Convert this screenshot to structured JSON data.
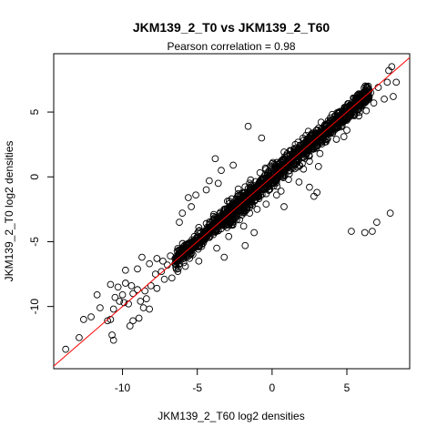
{
  "chart_data": {
    "type": "scatter",
    "title": "JKM139_2_T0 vs JKM139_2_T60",
    "subtitle": "Pearson correlation =  0.98",
    "xlabel": "JKM139_2_T60 log2 densities",
    "ylabel": "JKM139_2_T0 log2 densities",
    "xlim": [
      -14.6,
      9.2
    ],
    "ylim": [
      -14.8,
      9.5
    ],
    "xticks": [
      -10,
      -5,
      0,
      5
    ],
    "yticks": [
      -10,
      -5,
      0,
      5
    ],
    "grid": false,
    "point_style": "open circle",
    "point_color": "#000000",
    "fit_line": {
      "color": "#ff0000",
      "slope": 1.0,
      "intercept": 0.0
    },
    "pearson_correlation": 0.98,
    "series": [
      {
        "points": [
          [
            -13.8,
            -13.3
          ],
          [
            -12.9,
            -12.4
          ],
          [
            -12.6,
            -11.0
          ],
          [
            -12.1,
            -10.8
          ],
          [
            -11.7,
            -9.1
          ],
          [
            -11.5,
            -10.1
          ],
          [
            -11.0,
            -11.1
          ],
          [
            -10.8,
            -11.0
          ],
          [
            -10.6,
            -10.2
          ],
          [
            -10.5,
            -9.3
          ],
          [
            -10.2,
            -9.6
          ],
          [
            -10.8,
            -8.3
          ],
          [
            -10.3,
            -8.5
          ],
          [
            -10.0,
            -9.1
          ],
          [
            -9.8,
            -8.2
          ],
          [
            -10.7,
            -12.2
          ],
          [
            -10.6,
            -12.6
          ],
          [
            -9.9,
            -9.7
          ],
          [
            -9.6,
            -9.8
          ],
          [
            -9.3,
            -9.0
          ],
          [
            -9.0,
            -8.7
          ],
          [
            -9.5,
            -11.5
          ],
          [
            -9.3,
            -11.1
          ],
          [
            -8.9,
            -10.9
          ],
          [
            -8.6,
            -10.1
          ],
          [
            -9.8,
            -7.2
          ],
          [
            -9.0,
            -7.1
          ],
          [
            -8.7,
            -6.2
          ],
          [
            -8.2,
            -6.7
          ],
          [
            -7.7,
            -6.3
          ],
          [
            -7.3,
            -6.5
          ],
          [
            -8.4,
            -9.4
          ],
          [
            -8.1,
            -8.4
          ],
          [
            -7.7,
            -8.6
          ],
          [
            -7.4,
            -7.3
          ],
          [
            -7.0,
            -6.8
          ],
          [
            -6.7,
            -7.8
          ],
          [
            -6.3,
            -7.3
          ],
          [
            -6.0,
            -5.5
          ],
          [
            -5.8,
            -6.9
          ],
          [
            -5.5,
            -5.2
          ],
          [
            -4.9,
            -3.9
          ],
          [
            -4.4,
            -3.6
          ],
          [
            -3.9,
            -2.9
          ],
          [
            -3.3,
            -3.7
          ],
          [
            -2.9,
            -2.4
          ],
          [
            -2.4,
            -1.7
          ],
          [
            -1.9,
            -1.6
          ],
          [
            -1.4,
            -0.9
          ],
          [
            -0.9,
            -0.5
          ],
          [
            -0.4,
            -0.3
          ],
          [
            0.1,
            0.3
          ],
          [
            0.6,
            0.5
          ],
          [
            1.1,
            1.2
          ],
          [
            1.6,
            1.4
          ],
          [
            2.1,
            2.3
          ],
          [
            2.6,
            2.4
          ],
          [
            3.1,
            3.2
          ],
          [
            3.6,
            3.4
          ],
          [
            4.1,
            4.2
          ],
          [
            4.6,
            4.4
          ],
          [
            5.1,
            5.2
          ],
          [
            5.6,
            5.4
          ],
          [
            6.1,
            6.3
          ],
          [
            6.6,
            6.5
          ],
          [
            7.1,
            6.9
          ],
          [
            7.7,
            7.3
          ],
          [
            8.0,
            8.5
          ],
          [
            8.3,
            7.3
          ],
          [
            7.8,
            8.2
          ],
          [
            7.5,
            6.0
          ],
          [
            8.1,
            6.2
          ],
          [
            6.8,
            5.7
          ],
          [
            6.3,
            5.1
          ],
          [
            5.8,
            4.7
          ],
          [
            -1.6,
            3.9
          ],
          [
            -0.7,
            3.0
          ],
          [
            -4.2,
            -0.3
          ],
          [
            -3.4,
            0.5
          ],
          [
            -3.8,
            1.4
          ],
          [
            -5.4,
            -2.3
          ],
          [
            -5.6,
            -1.6
          ],
          [
            -4.4,
            -1.0
          ],
          [
            -3.6,
            -0.5
          ],
          [
            -2.6,
            0.9
          ],
          [
            -6.2,
            -3.5
          ],
          [
            -6.0,
            -2.8
          ],
          [
            -5.1,
            -1.4
          ],
          [
            -5.8,
            -5.8
          ],
          [
            -3.7,
            -5.5
          ],
          [
            -3.2,
            -6.2
          ],
          [
            -4.9,
            -6.5
          ],
          [
            -2.9,
            -4.6
          ],
          [
            -1.9,
            -3.8
          ],
          [
            -1.5,
            -2.8
          ],
          [
            -0.4,
            -2.1
          ],
          [
            0.6,
            -1.1
          ],
          [
            1.1,
            -0.2
          ],
          [
            2.1,
            0.6
          ],
          [
            3.1,
            0.8
          ],
          [
            3.6,
            2.7
          ],
          [
            -1.8,
            -5.3
          ],
          [
            -1.2,
            -4.3
          ],
          [
            -1.0,
            -2.5
          ],
          [
            0.3,
            -1.4
          ],
          [
            1.8,
            -0.4
          ],
          [
            2.5,
            1.2
          ],
          [
            3.2,
            1.8
          ],
          [
            4.3,
            2.9
          ],
          [
            5.0,
            3.6
          ],
          [
            2.8,
            -1.5
          ],
          [
            3.0,
            -1.2
          ],
          [
            0.8,
            -2.3
          ],
          [
            2.5,
            -0.8
          ],
          [
            5.3,
            -4.2
          ],
          [
            6.2,
            -4.3
          ],
          [
            6.7,
            -4.2
          ],
          [
            7.0,
            -3.5
          ],
          [
            7.9,
            -2.8
          ],
          [
            4.8,
            3.1
          ],
          [
            -8.2,
            -10.2
          ],
          [
            -8.8,
            -9.6
          ],
          [
            -9.4,
            -8.4
          ],
          [
            -8.5,
            -8.8
          ],
          [
            -7.8,
            -7.5
          ],
          [
            -7.2,
            -7.9
          ],
          [
            -6.8,
            -6.1
          ],
          [
            -6.5,
            -6.7
          ],
          [
            -6.1,
            -6.2
          ],
          [
            -5.6,
            -6.0
          ],
          [
            -5.2,
            -4.6
          ],
          [
            -4.7,
            -5.2
          ],
          [
            -4.3,
            -4.4
          ],
          [
            -3.9,
            -4.0
          ],
          [
            -3.4,
            -3.3
          ],
          [
            -2.8,
            -3.1
          ],
          [
            -2.3,
            -2.5
          ],
          [
            -1.7,
            -2.0
          ],
          [
            -1.2,
            -1.1
          ],
          [
            -0.7,
            -0.9
          ],
          [
            -0.2,
            0.1
          ],
          [
            0.4,
            0.0
          ],
          [
            0.9,
            1.0
          ],
          [
            1.4,
            0.9
          ],
          [
            1.9,
            1.8
          ],
          [
            2.4,
            2.0
          ],
          [
            2.9,
            2.8
          ],
          [
            3.4,
            3.0
          ],
          [
            3.9,
            3.8
          ],
          [
            4.4,
            4.0
          ],
          [
            4.9,
            4.9
          ],
          [
            5.4,
            5.0
          ],
          [
            5.9,
            5.8
          ],
          [
            6.4,
            6.1
          ]
        ]
      }
    ]
  }
}
